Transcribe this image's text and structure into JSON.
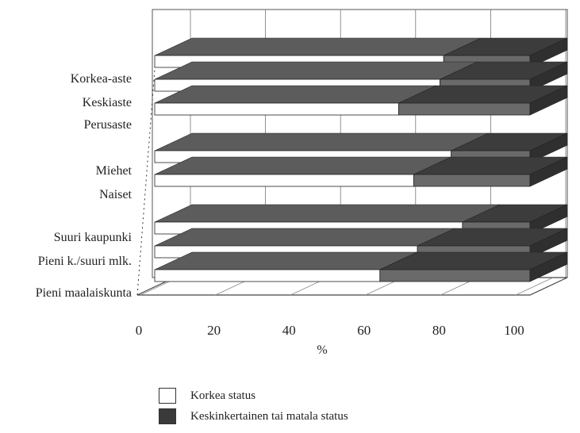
{
  "chart_data": {
    "type": "bar",
    "orientation": "horizontal",
    "stacked": true,
    "three_d": true,
    "categories": [
      "Korkea-aste",
      "Keskiaste",
      "Perusaste",
      "Miehet",
      "Naiset",
      "Suuri kaupunki",
      "Pieni k./suuri mlk.",
      "Pieni maalaiskunta"
    ],
    "groups": [
      [
        0,
        1,
        2
      ],
      [
        3,
        4
      ],
      [
        5,
        6,
        7
      ]
    ],
    "series": [
      {
        "name": "Korkea status",
        "values": [
          77,
          76,
          65,
          79,
          69,
          82,
          70,
          60
        ],
        "color": "#ffffff"
      },
      {
        "name": "Keskinkertainen tai matala status",
        "values": [
          23,
          24,
          35,
          21,
          31,
          18,
          30,
          40
        ],
        "color": "#4a4a4a"
      }
    ],
    "xticks": [
      "0",
      "20",
      "40",
      "60",
      "80",
      "100"
    ],
    "xlim": [
      0,
      100
    ],
    "xlabel": "%",
    "legend_position": "bottom",
    "grid": true
  }
}
